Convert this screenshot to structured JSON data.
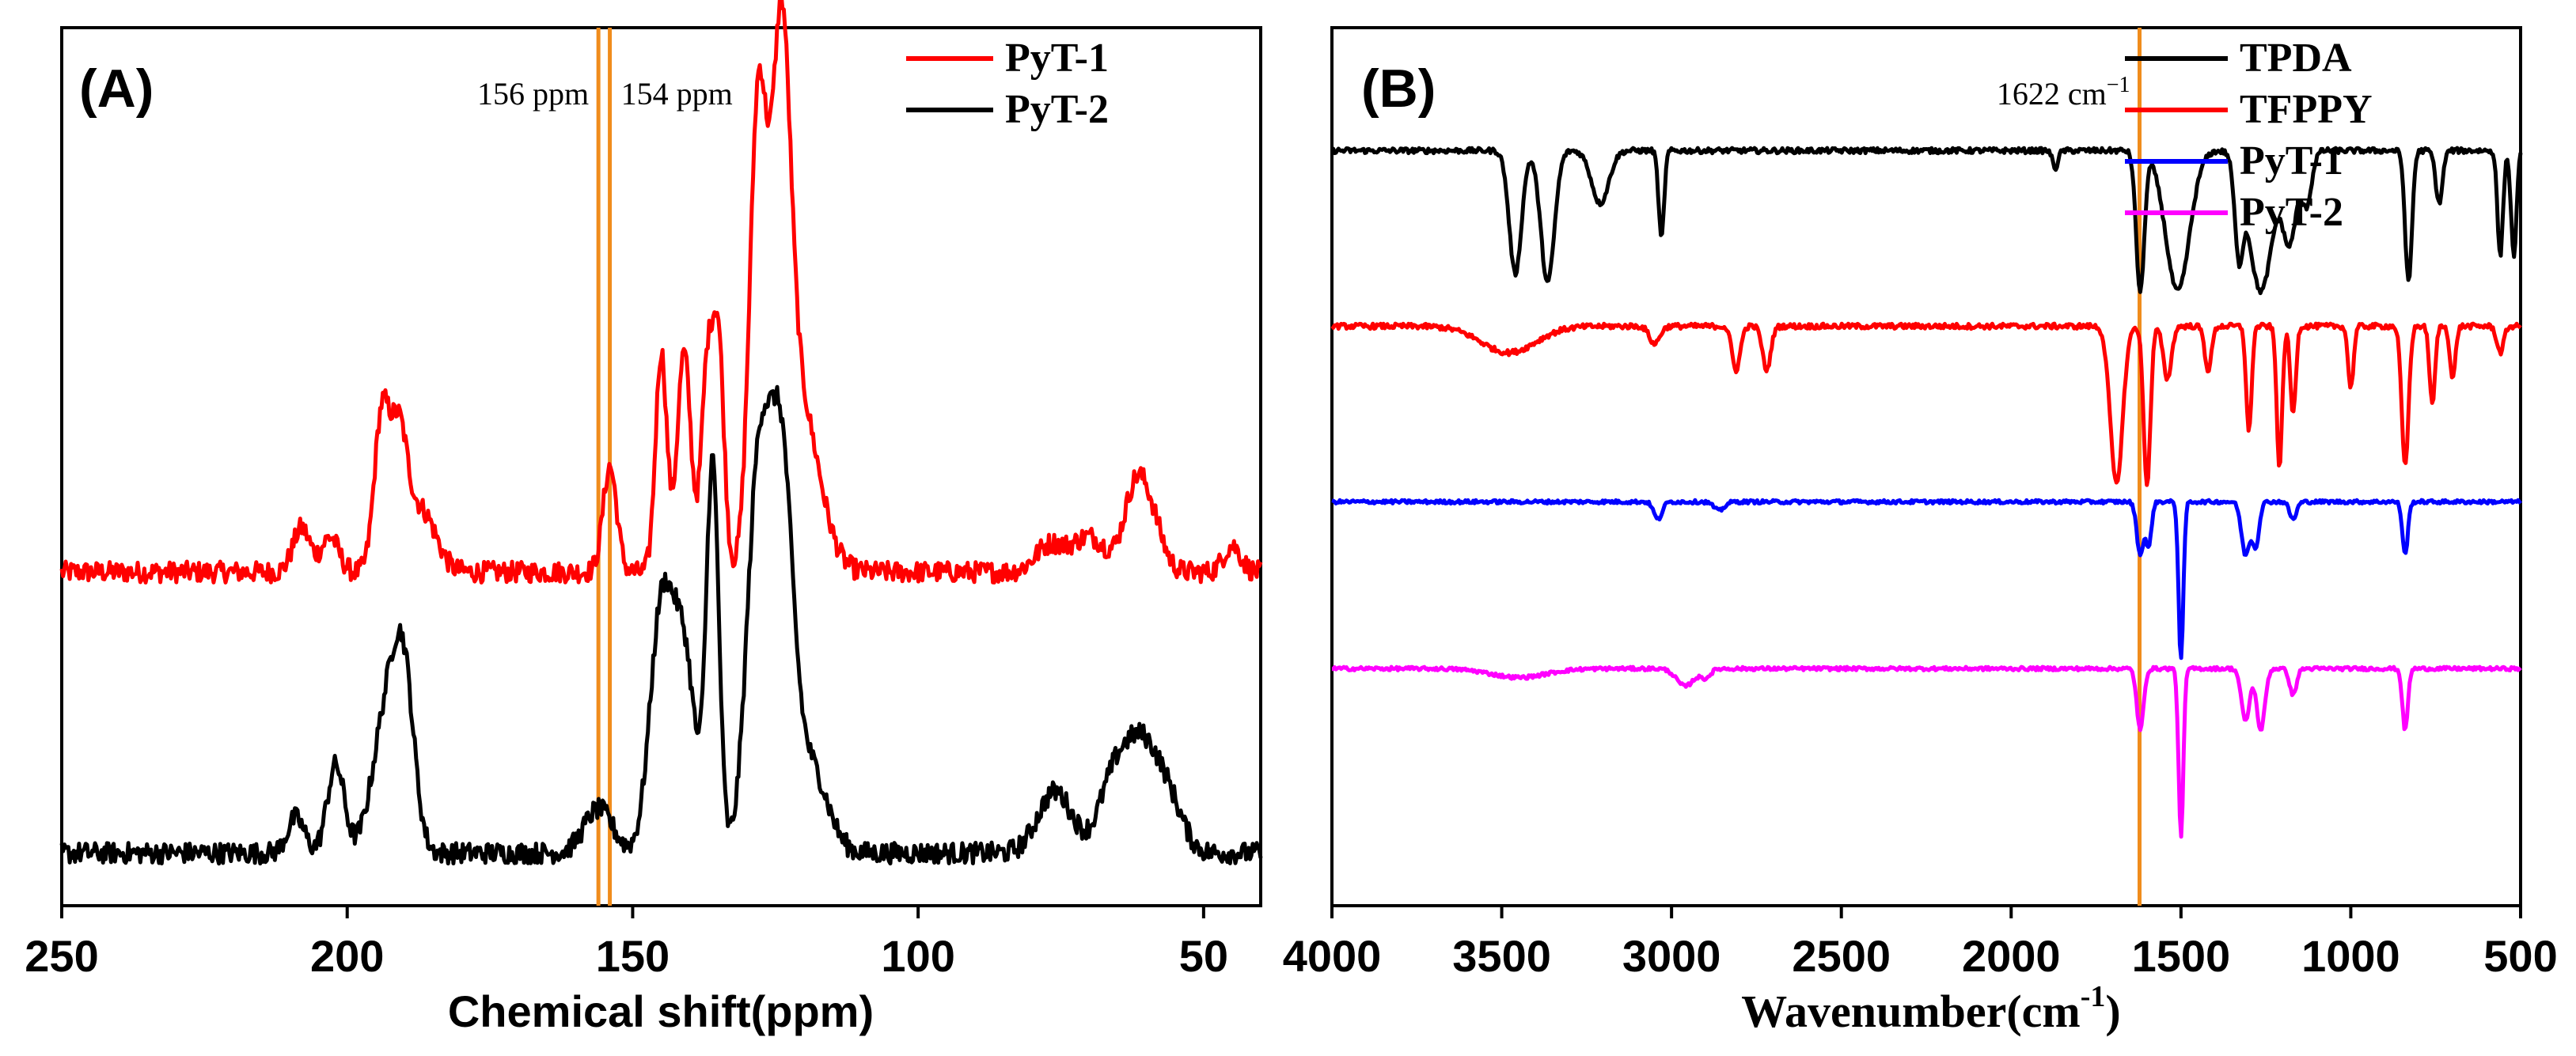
{
  "chart_data": [
    {
      "type": "line",
      "panel_label": "(A)",
      "xlabel": "Chemical shift(ppm)",
      "ylabel": "",
      "xlim": [
        250,
        40
      ],
      "x_reversed": true,
      "xticks": [
        250,
        200,
        150,
        100,
        50
      ],
      "xtick_labels": [
        "250",
        "200",
        "150",
        "100",
        "50"
      ],
      "legend_position": "top-right",
      "series": [
        {
          "name": "PyT-1",
          "color": "#ff0000",
          "baseline": 0.38,
          "noise": 0.012,
          "peaks": [
            {
              "center": 208,
              "height": 0.05,
              "width": 1.5
            },
            {
              "center": 203,
              "height": 0.04,
              "width": 1.5
            },
            {
              "center": 194,
              "height": 0.17,
              "width": 1.3
            },
            {
              "center": 191,
              "height": 0.15,
              "width": 1.5
            },
            {
              "center": 187,
              "height": 0.07,
              "width": 2.5
            },
            {
              "center": 154,
              "height": 0.12,
              "width": 1.2
            },
            {
              "center": 145,
              "height": 0.25,
              "width": 1.0
            },
            {
              "center": 141,
              "height": 0.25,
              "width": 1.2
            },
            {
              "center": 137,
              "height": 0.22,
              "width": 1.0
            },
            {
              "center": 135,
              "height": 0.26,
              "width": 1.0
            },
            {
              "center": 128,
              "height": 0.52,
              "width": 1.5
            },
            {
              "center": 124,
              "height": 0.5,
              "width": 1.6
            },
            {
              "center": 121,
              "height": 0.2,
              "width": 3.5
            },
            {
              "center": 77,
              "height": 0.03,
              "width": 2.5
            },
            {
              "center": 70,
              "height": 0.04,
              "width": 3.0
            },
            {
              "center": 62,
              "height": 0.09,
              "width": 2.0
            },
            {
              "center": 59,
              "height": 0.05,
              "width": 2.0
            },
            {
              "center": 45,
              "height": 0.03,
              "width": 1.5
            }
          ]
        },
        {
          "name": "PyT-2",
          "color": "#000000",
          "baseline": 0.06,
          "noise": 0.012,
          "peaks": [
            {
              "center": 209,
              "height": 0.04,
              "width": 1.5
            },
            {
              "center": 202,
              "height": 0.1,
              "width": 1.5
            },
            {
              "center": 193,
              "height": 0.16,
              "width": 2.5
            },
            {
              "center": 190,
              "height": 0.16,
              "width": 1.8
            },
            {
              "center": 156,
              "height": 0.05,
              "width": 2.5
            },
            {
              "center": 145,
              "height": 0.27,
              "width": 2.0
            },
            {
              "center": 141,
              "height": 0.22,
              "width": 2.0
            },
            {
              "center": 136,
              "height": 0.44,
              "width": 1.1
            },
            {
              "center": 128,
              "height": 0.42,
              "width": 2.0
            },
            {
              "center": 124,
              "height": 0.42,
              "width": 2.0
            },
            {
              "center": 119,
              "height": 0.1,
              "width": 3.0
            },
            {
              "center": 76,
              "height": 0.07,
              "width": 3.0
            },
            {
              "center": 66,
              "height": 0.07,
              "width": 2.5
            },
            {
              "center": 61,
              "height": 0.12,
              "width": 3.0
            },
            {
              "center": 56,
              "height": 0.05,
              "width": 2.5
            }
          ]
        }
      ],
      "annotations": [
        {
          "x": 156,
          "label": "156 ppm",
          "color": "#f08c1c",
          "text_side": "left"
        },
        {
          "x": 154,
          "label": "154 ppm",
          "color": "#f08c1c",
          "text_side": "right"
        }
      ]
    },
    {
      "type": "line",
      "panel_label": "(B)",
      "xlabel": "Wavenumber(cm",
      "xlabel_sup": "-1",
      "xlabel_end": ")",
      "ylabel": "",
      "xlim": [
        4000,
        500
      ],
      "x_reversed": true,
      "xticks": [
        4000,
        3500,
        3000,
        2500,
        2000,
        1500,
        1000,
        500
      ],
      "xtick_labels": [
        "4000",
        "3500",
        "3000",
        "2500",
        "2000",
        "1500",
        "1000",
        "500"
      ],
      "legend_position": "top-right",
      "series": [
        {
          "name": "TPDA",
          "color": "#000000",
          "baseline": 0.86,
          "noise": 0.003,
          "peaks": [
            {
              "center": 3460,
              "depth": 0.14,
              "width": 18
            },
            {
              "center": 3365,
              "depth": 0.15,
              "width": 20
            },
            {
              "center": 3210,
              "depth": 0.06,
              "width": 25
            },
            {
              "center": 3030,
              "depth": 0.1,
              "width": 8
            },
            {
              "center": 1870,
              "depth": 0.02,
              "width": 8
            },
            {
              "center": 1620,
              "depth": 0.16,
              "width": 12
            },
            {
              "center": 1510,
              "depth": 0.16,
              "width": 35
            },
            {
              "center": 1330,
              "depth": 0.1,
              "width": 12
            },
            {
              "center": 1265,
              "depth": 0.16,
              "width": 35
            },
            {
              "center": 1180,
              "depth": 0.1,
              "width": 20
            },
            {
              "center": 1130,
              "depth": 0.06,
              "width": 15
            },
            {
              "center": 830,
              "depth": 0.15,
              "width": 10
            },
            {
              "center": 740,
              "depth": 0.06,
              "width": 10
            },
            {
              "center": 560,
              "depth": 0.12,
              "width": 8
            },
            {
              "center": 520,
              "depth": 0.12,
              "width": 8
            }
          ]
        },
        {
          "name": "TFPPY",
          "color": "#ff0000",
          "baseline": 0.66,
          "noise": 0.003,
          "peaks": [
            {
              "center": 3480,
              "depth": 0.03,
              "width": 80
            },
            {
              "center": 3050,
              "depth": 0.02,
              "width": 15
            },
            {
              "center": 2810,
              "depth": 0.05,
              "width": 12
            },
            {
              "center": 2720,
              "depth": 0.05,
              "width": 12
            },
            {
              "center": 1690,
              "depth": 0.18,
              "width": 18
            },
            {
              "center": 1600,
              "depth": 0.18,
              "width": 10
            },
            {
              "center": 1540,
              "depth": 0.06,
              "width": 12
            },
            {
              "center": 1420,
              "depth": 0.05,
              "width": 10
            },
            {
              "center": 1300,
              "depth": 0.12,
              "width": 8
            },
            {
              "center": 1210,
              "depth": 0.16,
              "width": 8
            },
            {
              "center": 1170,
              "depth": 0.1,
              "width": 8
            },
            {
              "center": 1000,
              "depth": 0.07,
              "width": 8
            },
            {
              "center": 840,
              "depth": 0.16,
              "width": 10
            },
            {
              "center": 760,
              "depth": 0.09,
              "width": 8
            },
            {
              "center": 700,
              "depth": 0.06,
              "width": 8
            },
            {
              "center": 560,
              "depth": 0.03,
              "width": 10
            }
          ]
        },
        {
          "name": "PyT-1",
          "color": "#0000ff",
          "baseline": 0.46,
          "noise": 0.002,
          "peaks": [
            {
              "center": 3040,
              "depth": 0.02,
              "width": 12
            },
            {
              "center": 2860,
              "depth": 0.01,
              "width": 15
            },
            {
              "center": 1620,
              "depth": 0.06,
              "width": 10
            },
            {
              "center": 1595,
              "depth": 0.05,
              "width": 8
            },
            {
              "center": 1500,
              "depth": 0.18,
              "width": 7
            },
            {
              "center": 1310,
              "depth": 0.06,
              "width": 12
            },
            {
              "center": 1280,
              "depth": 0.05,
              "width": 10
            },
            {
              "center": 1170,
              "depth": 0.02,
              "width": 10
            },
            {
              "center": 840,
              "depth": 0.06,
              "width": 8
            }
          ]
        },
        {
          "name": "PyT-2",
          "color": "#ff00ff",
          "baseline": 0.27,
          "noise": 0.002,
          "peaks": [
            {
              "center": 3450,
              "depth": 0.01,
              "width": 80
            },
            {
              "center": 2960,
              "depth": 0.02,
              "width": 25
            },
            {
              "center": 2900,
              "depth": 0.01,
              "width": 15
            },
            {
              "center": 1620,
              "depth": 0.07,
              "width": 10
            },
            {
              "center": 1500,
              "depth": 0.19,
              "width": 7
            },
            {
              "center": 1310,
              "depth": 0.06,
              "width": 12
            },
            {
              "center": 1265,
              "depth": 0.07,
              "width": 12
            },
            {
              "center": 1170,
              "depth": 0.03,
              "width": 10
            },
            {
              "center": 840,
              "depth": 0.07,
              "width": 8
            }
          ]
        }
      ],
      "annotations": [
        {
          "x": 1622,
          "label": "1622 cm",
          "label_sup": "−1",
          "color": "#f08c1c",
          "text_side": "left"
        }
      ]
    }
  ]
}
